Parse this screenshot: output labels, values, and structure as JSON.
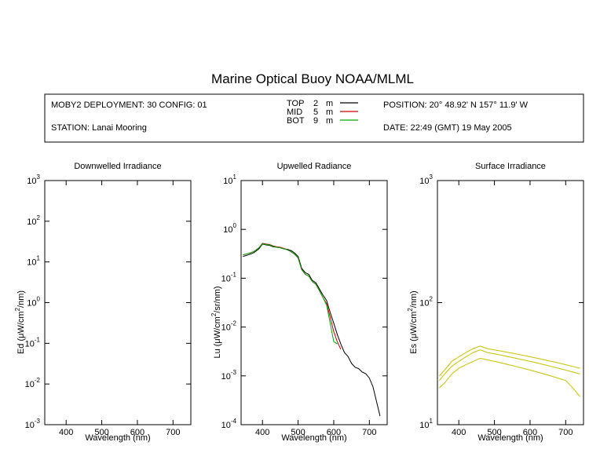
{
  "title": "Marine Optical Buoy NOAA/MLML",
  "header": {
    "deployment": "MOBY2 DEPLOYMENT: 30 CONFIG: 01",
    "station": "STATION: Lanai Mooring",
    "position": "POSITION: 20° 48.92' N   157° 11.9' W",
    "date": "DATE: 22:49 (GMT) 19 May 2005",
    "legend": [
      {
        "name": "TOP",
        "depth": "2",
        "unit": "m",
        "color": "#000000"
      },
      {
        "name": "MID",
        "depth": "5",
        "unit": "m",
        "color": "#cc0000"
      },
      {
        "name": "BOT",
        "depth": "9",
        "unit": "m",
        "color": "#00aa00"
      }
    ]
  },
  "chart_data": [
    {
      "type": "line",
      "title": "Downwelled Irradiance",
      "ylabel_prefix": "Ed  (",
      "ylabel_unit_pre": "μW/cm",
      "ylabel_sup": "2",
      "ylabel_unit_post": "/nm)",
      "xlabel": "Wavelength (nm)",
      "xlim": [
        340,
        750
      ],
      "ylim": [
        0.001,
        1000
      ],
      "yscale": "log",
      "xticks": [
        400,
        500,
        600,
        700
      ],
      "yticks": [
        {
          "base": "10",
          "exp": "-3"
        },
        {
          "base": "10",
          "exp": "-2"
        },
        {
          "base": "10",
          "exp": "-1"
        },
        {
          "base": "10",
          "exp": "0"
        },
        {
          "base": "10",
          "exp": "1"
        },
        {
          "base": "10",
          "exp": "2"
        },
        {
          "base": "10",
          "exp": "3"
        }
      ],
      "series": []
    },
    {
      "type": "line",
      "title": "Upwelled Radiance",
      "ylabel_prefix": "Lu  (",
      "ylabel_unit_pre": "μW/cm",
      "ylabel_sup": "2",
      "ylabel_unit_post": "/sr/nm)",
      "xlabel": "Wavelength (nm)",
      "xlim": [
        340,
        750
      ],
      "ylim": [
        0.0001,
        10
      ],
      "yscale": "log",
      "xticks": [
        400,
        500,
        600,
        700
      ],
      "yticks": [
        {
          "base": "10",
          "exp": "-4"
        },
        {
          "base": "10",
          "exp": "-3"
        },
        {
          "base": "10",
          "exp": "-2"
        },
        {
          "base": "10",
          "exp": "-1"
        },
        {
          "base": "10",
          "exp": "0"
        },
        {
          "base": "10",
          "exp": "1"
        }
      ],
      "series": [
        {
          "color": "#000000",
          "x": [
            345,
            360,
            375,
            390,
            400,
            410,
            420,
            430,
            440,
            450,
            460,
            470,
            480,
            490,
            500,
            510,
            520,
            530,
            540,
            550,
            560,
            570,
            580,
            590,
            600,
            610,
            620,
            630,
            640,
            650,
            660,
            670,
            680,
            690,
            700,
            710,
            720,
            730
          ],
          "y": [
            0.28,
            0.3,
            0.33,
            0.4,
            0.5,
            0.48,
            0.47,
            0.44,
            0.43,
            0.42,
            0.4,
            0.39,
            0.37,
            0.33,
            0.28,
            0.16,
            0.13,
            0.12,
            0.09,
            0.08,
            0.06,
            0.045,
            0.035,
            0.02,
            0.012,
            0.007,
            0.0045,
            0.003,
            0.0025,
            0.0018,
            0.0015,
            0.0014,
            0.0012,
            0.0011,
            0.0009,
            0.0006,
            0.0003,
            0.00015
          ]
        },
        {
          "color": "#cc0000",
          "x": [
            345,
            360,
            375,
            390,
            400,
            410,
            420,
            430,
            440,
            450,
            460,
            470,
            480,
            490,
            500,
            510,
            520,
            530,
            540,
            550,
            560,
            570,
            580,
            590,
            600,
            610,
            620
          ],
          "y": [
            0.3,
            0.32,
            0.35,
            0.42,
            0.52,
            0.5,
            0.49,
            0.46,
            0.44,
            0.43,
            0.41,
            0.38,
            0.35,
            0.31,
            0.26,
            0.15,
            0.12,
            0.11,
            0.085,
            0.075,
            0.055,
            0.04,
            0.03,
            0.016,
            0.008,
            0.005,
            0.0035
          ]
        },
        {
          "color": "#00aa00",
          "x": [
            345,
            360,
            375,
            390,
            400,
            410,
            420,
            430,
            440,
            450,
            460,
            470,
            480,
            490,
            500,
            510,
            520,
            530,
            540,
            550,
            560,
            570,
            580,
            590,
            600,
            610
          ],
          "y": [
            0.3,
            0.32,
            0.35,
            0.42,
            0.51,
            0.49,
            0.48,
            0.45,
            0.43,
            0.42,
            0.4,
            0.38,
            0.35,
            0.31,
            0.26,
            0.15,
            0.12,
            0.11,
            0.085,
            0.075,
            0.055,
            0.04,
            0.028,
            0.012,
            0.005,
            0.0045
          ]
        }
      ]
    },
    {
      "type": "line",
      "title": "Surface Irradiance",
      "ylabel_prefix": "Es  (",
      "ylabel_unit_pre": "μW/cm",
      "ylabel_sup": "2",
      "ylabel_unit_post": "/nm)",
      "xlabel": "Wavelength (nm)",
      "xlim": [
        340,
        750
      ],
      "ylim": [
        10,
        1000
      ],
      "yscale": "log",
      "xticks": [
        400,
        500,
        600,
        700
      ],
      "yticks": [
        {
          "base": "10",
          "exp": "1"
        },
        {
          "base": "10",
          "exp": "2"
        },
        {
          "base": "10",
          "exp": "3"
        }
      ],
      "series": [
        {
          "color": "#c8c000",
          "x": [
            345,
            360,
            380,
            400,
            420,
            440,
            460,
            480,
            500,
            520,
            540,
            560,
            580,
            600,
            620,
            640,
            660,
            680,
            700,
            720,
            740
          ],
          "y": [
            25,
            28,
            33,
            36,
            39,
            42,
            44,
            42,
            41,
            40,
            39,
            38,
            37,
            36,
            35,
            34,
            33,
            32,
            31,
            30,
            29
          ]
        },
        {
          "color": "#c8c000",
          "x": [
            345,
            360,
            380,
            400,
            420,
            440,
            460,
            480,
            500,
            520,
            540,
            560,
            580,
            600,
            620,
            640,
            660,
            680,
            700,
            720,
            740
          ],
          "y": [
            23,
            26,
            30,
            33,
            36,
            39,
            41,
            39,
            38,
            37,
            36,
            35,
            34,
            33,
            32,
            31,
            30,
            29,
            28,
            27,
            26
          ]
        },
        {
          "color": "#c8c000",
          "x": [
            345,
            360,
            380,
            400,
            420,
            440,
            460,
            480,
            500,
            520,
            540,
            560,
            580,
            600,
            620,
            640,
            660,
            680,
            700,
            720,
            740
          ],
          "y": [
            20,
            22,
            26,
            29,
            31,
            33,
            35,
            34,
            33,
            32,
            31,
            30,
            29,
            28,
            27,
            26,
            25,
            24,
            23,
            20,
            17
          ]
        }
      ]
    }
  ]
}
